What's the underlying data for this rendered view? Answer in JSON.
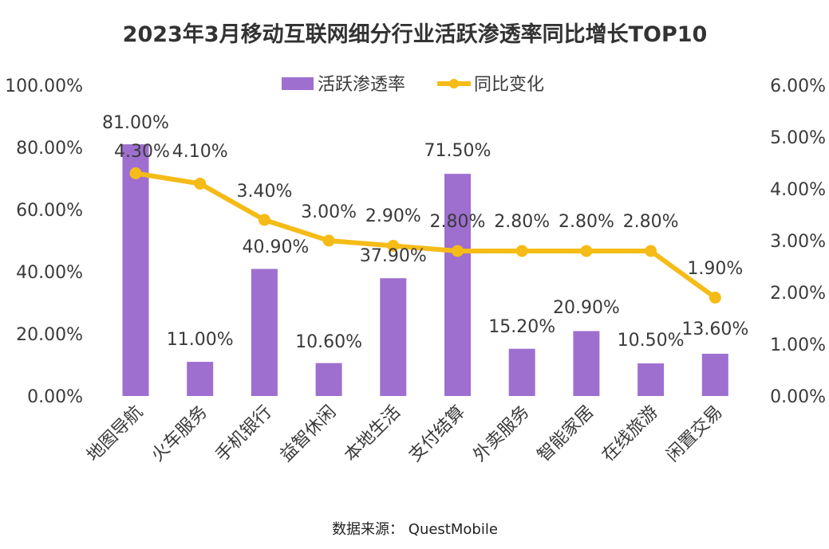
{
  "chart_data": {
    "type": "bar",
    "title": "2023年3月移动互联网细分行业活跃渗透率同比增长TOP10",
    "xlabel": "",
    "ylabel": "",
    "categories": [
      "地图导航",
      "火车服务",
      "手机银行",
      "益智休闲",
      "本地生活",
      "支付结算",
      "外卖服务",
      "智能家居",
      "在线旅游",
      "闲置交易"
    ],
    "series": [
      {
        "name": "活跃渗透率",
        "type": "bar",
        "axis": "left",
        "color": "#9e6fcf",
        "values": [
          81.0,
          11.0,
          40.9,
          10.6,
          37.9,
          71.5,
          15.2,
          20.9,
          10.5,
          13.6
        ],
        "labels": [
          "81.00%",
          "11.00%",
          "40.90%",
          "10.60%",
          "37.90%",
          "71.50%",
          "15.20%",
          "20.90%",
          "10.50%",
          "13.60%"
        ]
      },
      {
        "name": "同比变化",
        "type": "line",
        "axis": "right",
        "color": "#f5bb17",
        "values": [
          4.3,
          4.1,
          3.4,
          3.0,
          2.9,
          2.8,
          2.8,
          2.8,
          2.8,
          1.9
        ],
        "labels": [
          "4.30%",
          "4.10%",
          "3.40%",
          "3.00%",
          "2.90%",
          "2.80%",
          "2.80%",
          "2.80%",
          "2.80%",
          "1.90%"
        ]
      }
    ],
    "y_left": {
      "ylim": [
        0,
        100
      ],
      "ticks": [
        0,
        20,
        40,
        60,
        80,
        100
      ],
      "tick_labels": [
        "0.00%",
        "20.00%",
        "40.00%",
        "60.00%",
        "80.00%",
        "100.00%"
      ]
    },
    "y_right": {
      "ylim": [
        0,
        6
      ],
      "ticks": [
        0,
        1,
        2,
        3,
        4,
        5,
        6
      ],
      "tick_labels": [
        "0.00%",
        "1.00%",
        "2.00%",
        "3.00%",
        "4.00%",
        "5.00%",
        "6.00%"
      ]
    },
    "grid": false,
    "legend": {
      "placement": "top-center",
      "entries": [
        "活跃渗透率",
        "同比变化"
      ]
    },
    "source": "数据来源：  QuestMobile"
  }
}
